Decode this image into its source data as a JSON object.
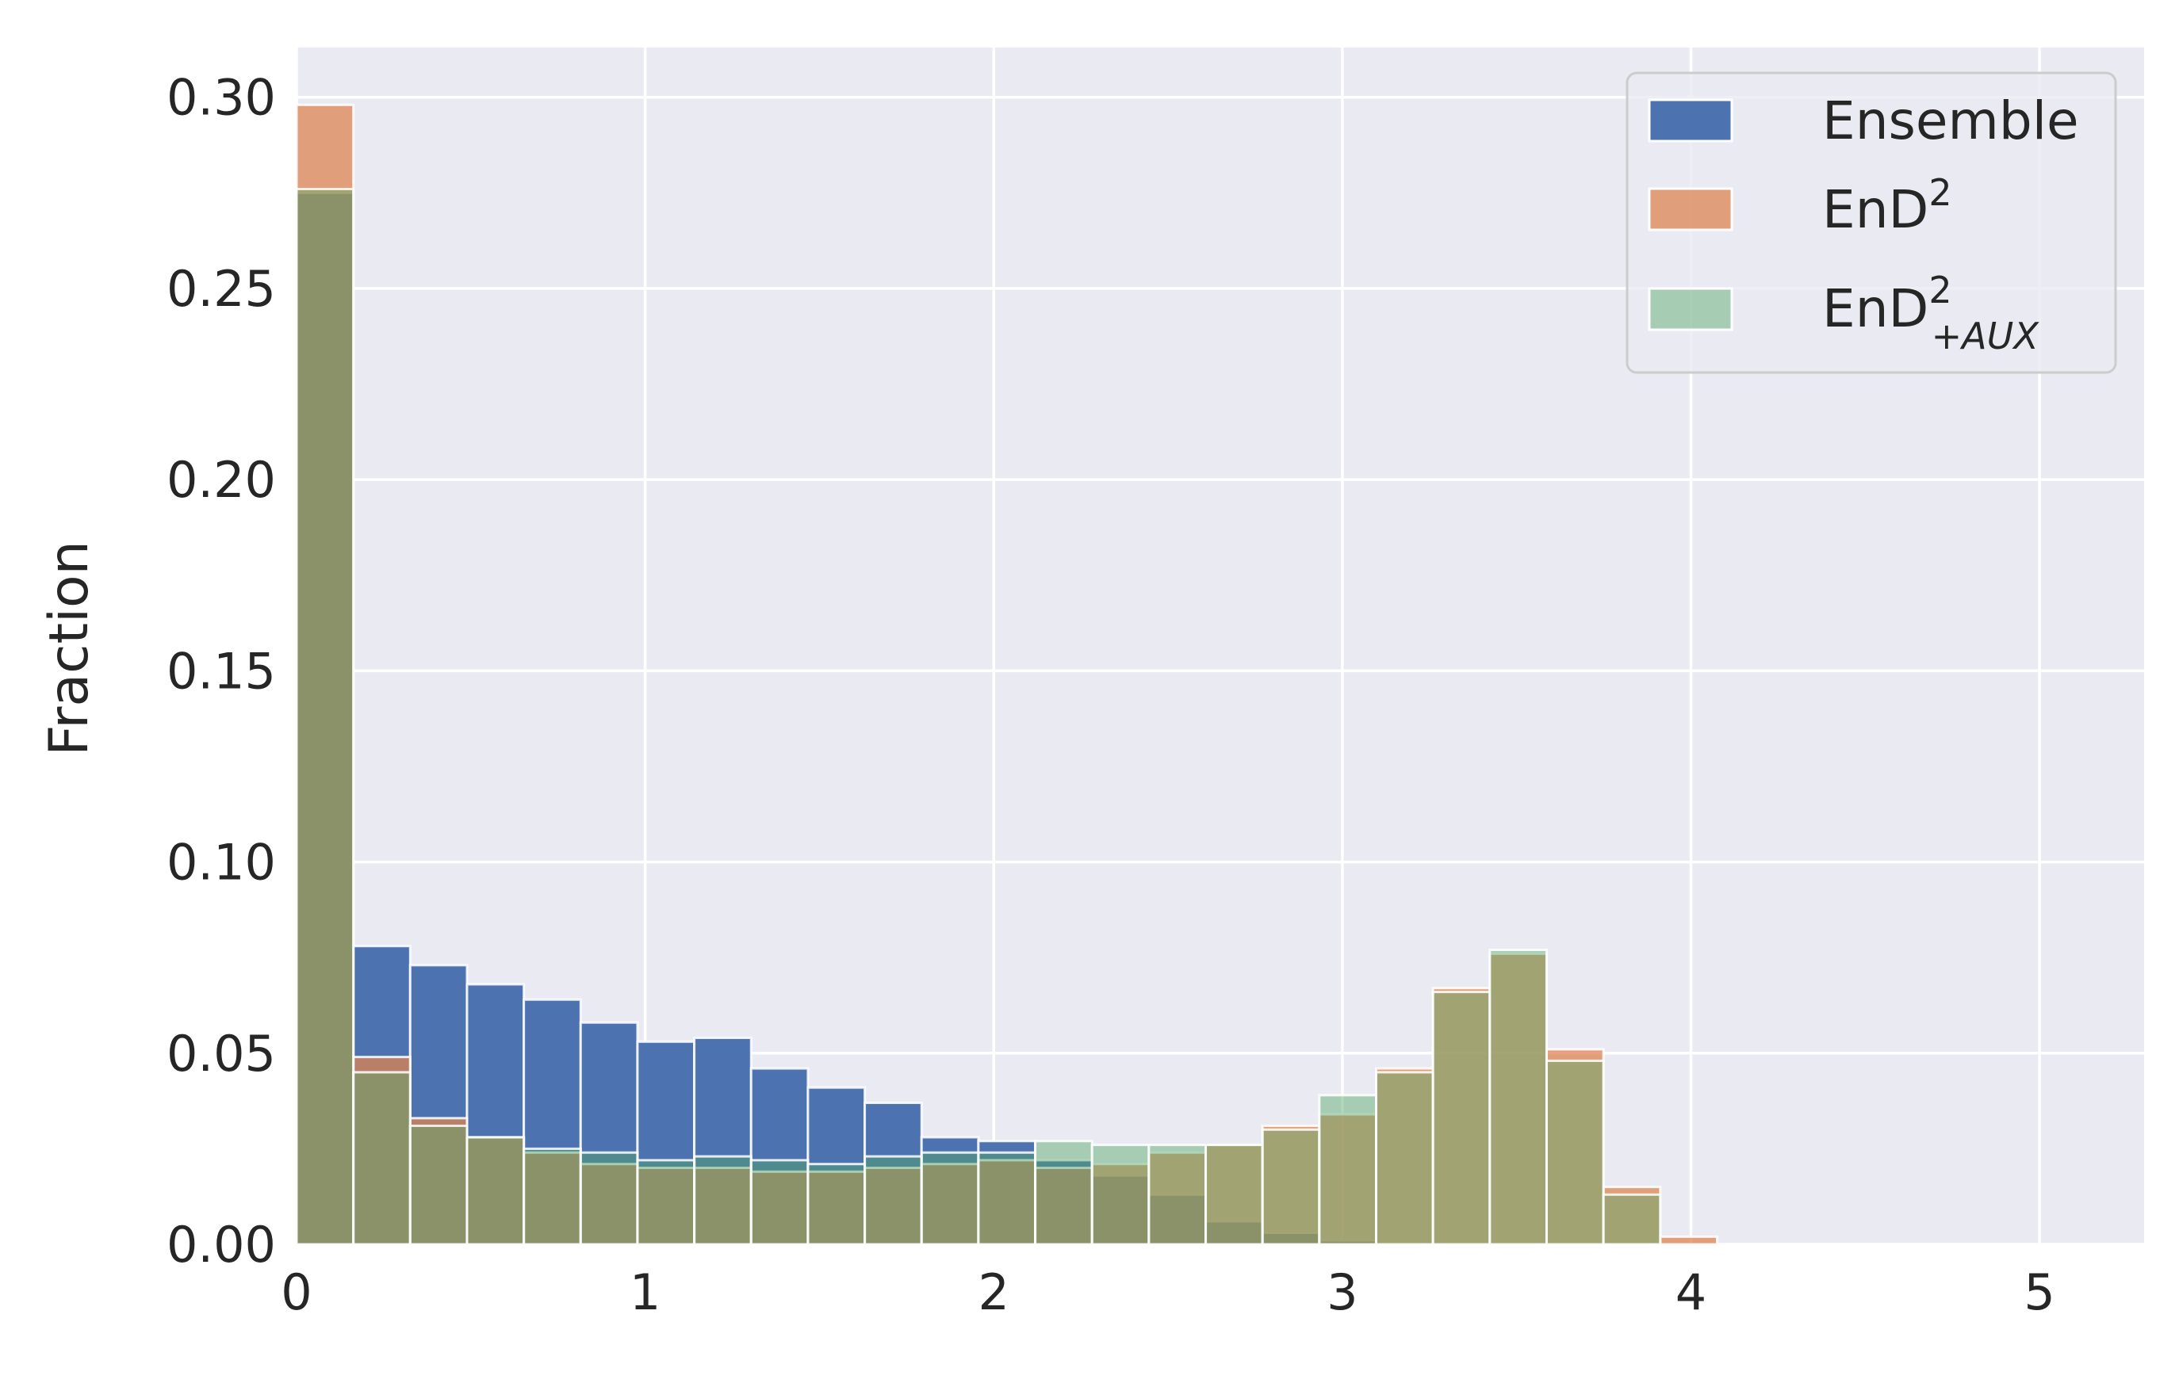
{
  "chart_data": {
    "type": "bar",
    "title": "",
    "xlabel": "",
    "ylabel": "Fraction",
    "xlim": [
      0,
      5.3
    ],
    "ylim": [
      0,
      0.313
    ],
    "xticks": [
      0,
      1,
      2,
      3,
      4,
      5
    ],
    "xtick_labels": [
      "0",
      "1",
      "2",
      "3",
      "4",
      "5"
    ],
    "yticks": [
      0,
      0.05,
      0.1,
      0.15,
      0.2,
      0.25,
      0.3
    ],
    "ytick_labels": [
      "0.00",
      "0.05",
      "0.10",
      "0.15",
      "0.20",
      "0.25",
      "0.30"
    ],
    "grid": true,
    "legend_position": "top-right",
    "bin_edges": [
      0,
      0.163,
      0.326,
      0.489,
      0.652,
      0.815,
      0.978,
      1.141,
      1.304,
      1.467,
      1.63,
      1.793,
      1.956,
      2.119,
      2.282,
      2.445,
      2.608,
      2.771,
      2.934,
      3.097,
      3.26,
      3.423,
      3.586,
      3.749,
      3.912,
      4.075
    ],
    "series": [
      {
        "name": "Ensemble",
        "color": "#4c72b0",
        "opacity": 1.0,
        "values": [
          0.275,
          0.078,
          0.073,
          0.068,
          0.064,
          0.058,
          0.053,
          0.054,
          0.046,
          0.041,
          0.037,
          0.028,
          0.027,
          0.022,
          0.018,
          0.013,
          0.006,
          0.003,
          0.001,
          0.0,
          0.0,
          0.0,
          0.0,
          0.0,
          0.0
        ]
      },
      {
        "name_parts": {
          "base": "EnD",
          "sup": "2",
          "sub": ""
        },
        "color": "#dd8452",
        "opacity": 0.75,
        "values": [
          0.298,
          0.049,
          0.033,
          0.028,
          0.024,
          0.021,
          0.02,
          0.02,
          0.019,
          0.019,
          0.02,
          0.021,
          0.022,
          0.02,
          0.021,
          0.024,
          0.026,
          0.031,
          0.034,
          0.046,
          0.067,
          0.076,
          0.051,
          0.015,
          0.002
        ]
      },
      {
        "name_parts": {
          "base": "EnD",
          "sup": "2",
          "sub": "+AUX"
        },
        "color": "#55a868",
        "opacity": 0.45,
        "values": [
          0.276,
          0.045,
          0.031,
          0.028,
          0.025,
          0.024,
          0.022,
          0.023,
          0.022,
          0.021,
          0.023,
          0.024,
          0.024,
          0.027,
          0.026,
          0.026,
          0.026,
          0.03,
          0.039,
          0.045,
          0.066,
          0.077,
          0.048,
          0.013,
          0.0
        ]
      }
    ]
  }
}
